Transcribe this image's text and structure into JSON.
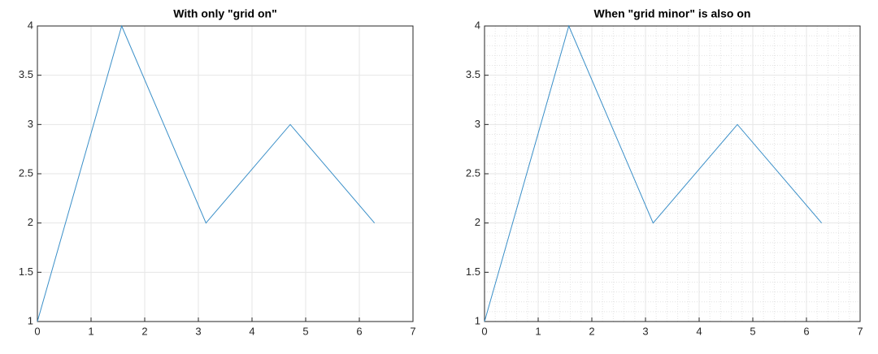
{
  "chart_data": [
    {
      "type": "line",
      "title": "With only \"grid on\"",
      "x": [
        0,
        1.5708,
        3.1416,
        4.7124,
        6.2832
      ],
      "series": [
        {
          "color": "#3a8fc8",
          "values": [
            1,
            4,
            2,
            3,
            2
          ]
        }
      ],
      "xlim": [
        0,
        7
      ],
      "xticks": [
        0,
        1,
        2,
        3,
        4,
        5,
        6,
        7
      ],
      "ylim": [
        1,
        4
      ],
      "yticks": [
        1,
        1.5,
        2,
        2.5,
        3,
        3.5,
        4
      ],
      "grid": true,
      "minor_grid": false
    },
    {
      "type": "line",
      "title": "When \"grid minor\" is also on",
      "x": [
        0,
        1.5708,
        3.1416,
        4.7124,
        6.2832
      ],
      "series": [
        {
          "color": "#3a8fc8",
          "values": [
            1,
            4,
            2,
            3,
            2
          ]
        }
      ],
      "xlim": [
        0,
        7
      ],
      "xticks": [
        0,
        1,
        2,
        3,
        4,
        5,
        6,
        7
      ],
      "ylim": [
        1,
        4
      ],
      "yticks": [
        1,
        1.5,
        2,
        2.5,
        3,
        3.5,
        4
      ],
      "grid": true,
      "minor_grid": true
    }
  ]
}
